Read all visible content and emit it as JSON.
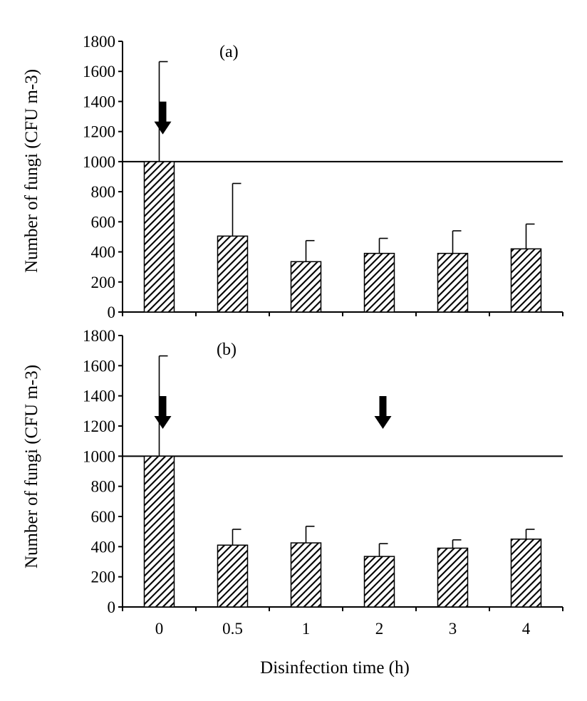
{
  "chart_data": [
    {
      "type": "bar",
      "panel_label": "(a)",
      "ylabel": "Number of fungi (CFU m-3)",
      "xlabel": "",
      "categories": [
        "0",
        "0.5",
        "1",
        "2",
        "3",
        "4"
      ],
      "values": [
        1000,
        505,
        335,
        390,
        390,
        420
      ],
      "error_upper": [
        1665,
        855,
        475,
        490,
        540,
        585
      ],
      "ylim": [
        0,
        1800
      ],
      "yticks": [
        0,
        200,
        400,
        600,
        800,
        1000,
        1200,
        1400,
        1600,
        1800
      ],
      "reference_line": 1000,
      "arrows_at": [
        0.5
      ],
      "bar_fill": "hatched",
      "grid": false
    },
    {
      "type": "bar",
      "panel_label": "(b)",
      "ylabel": "Number of fungi (CFU m-3)",
      "xlabel": "Disinfection time (h)",
      "categories": [
        "0",
        "0.5",
        "1",
        "2",
        "3",
        "4"
      ],
      "values": [
        1000,
        410,
        425,
        335,
        390,
        450
      ],
      "error_upper": [
        1665,
        515,
        535,
        420,
        445,
        515
      ],
      "ylim": [
        0,
        1800
      ],
      "yticks": [
        0,
        200,
        400,
        600,
        800,
        1000,
        1200,
        1400,
        1600,
        1800
      ],
      "reference_line": 1000,
      "arrows_at": [
        0.5,
        3.5
      ],
      "bar_fill": "hatched",
      "grid": false
    }
  ],
  "colors": {
    "ink": "#000000",
    "bar_hatch": "#000000",
    "background": "#ffffff"
  }
}
